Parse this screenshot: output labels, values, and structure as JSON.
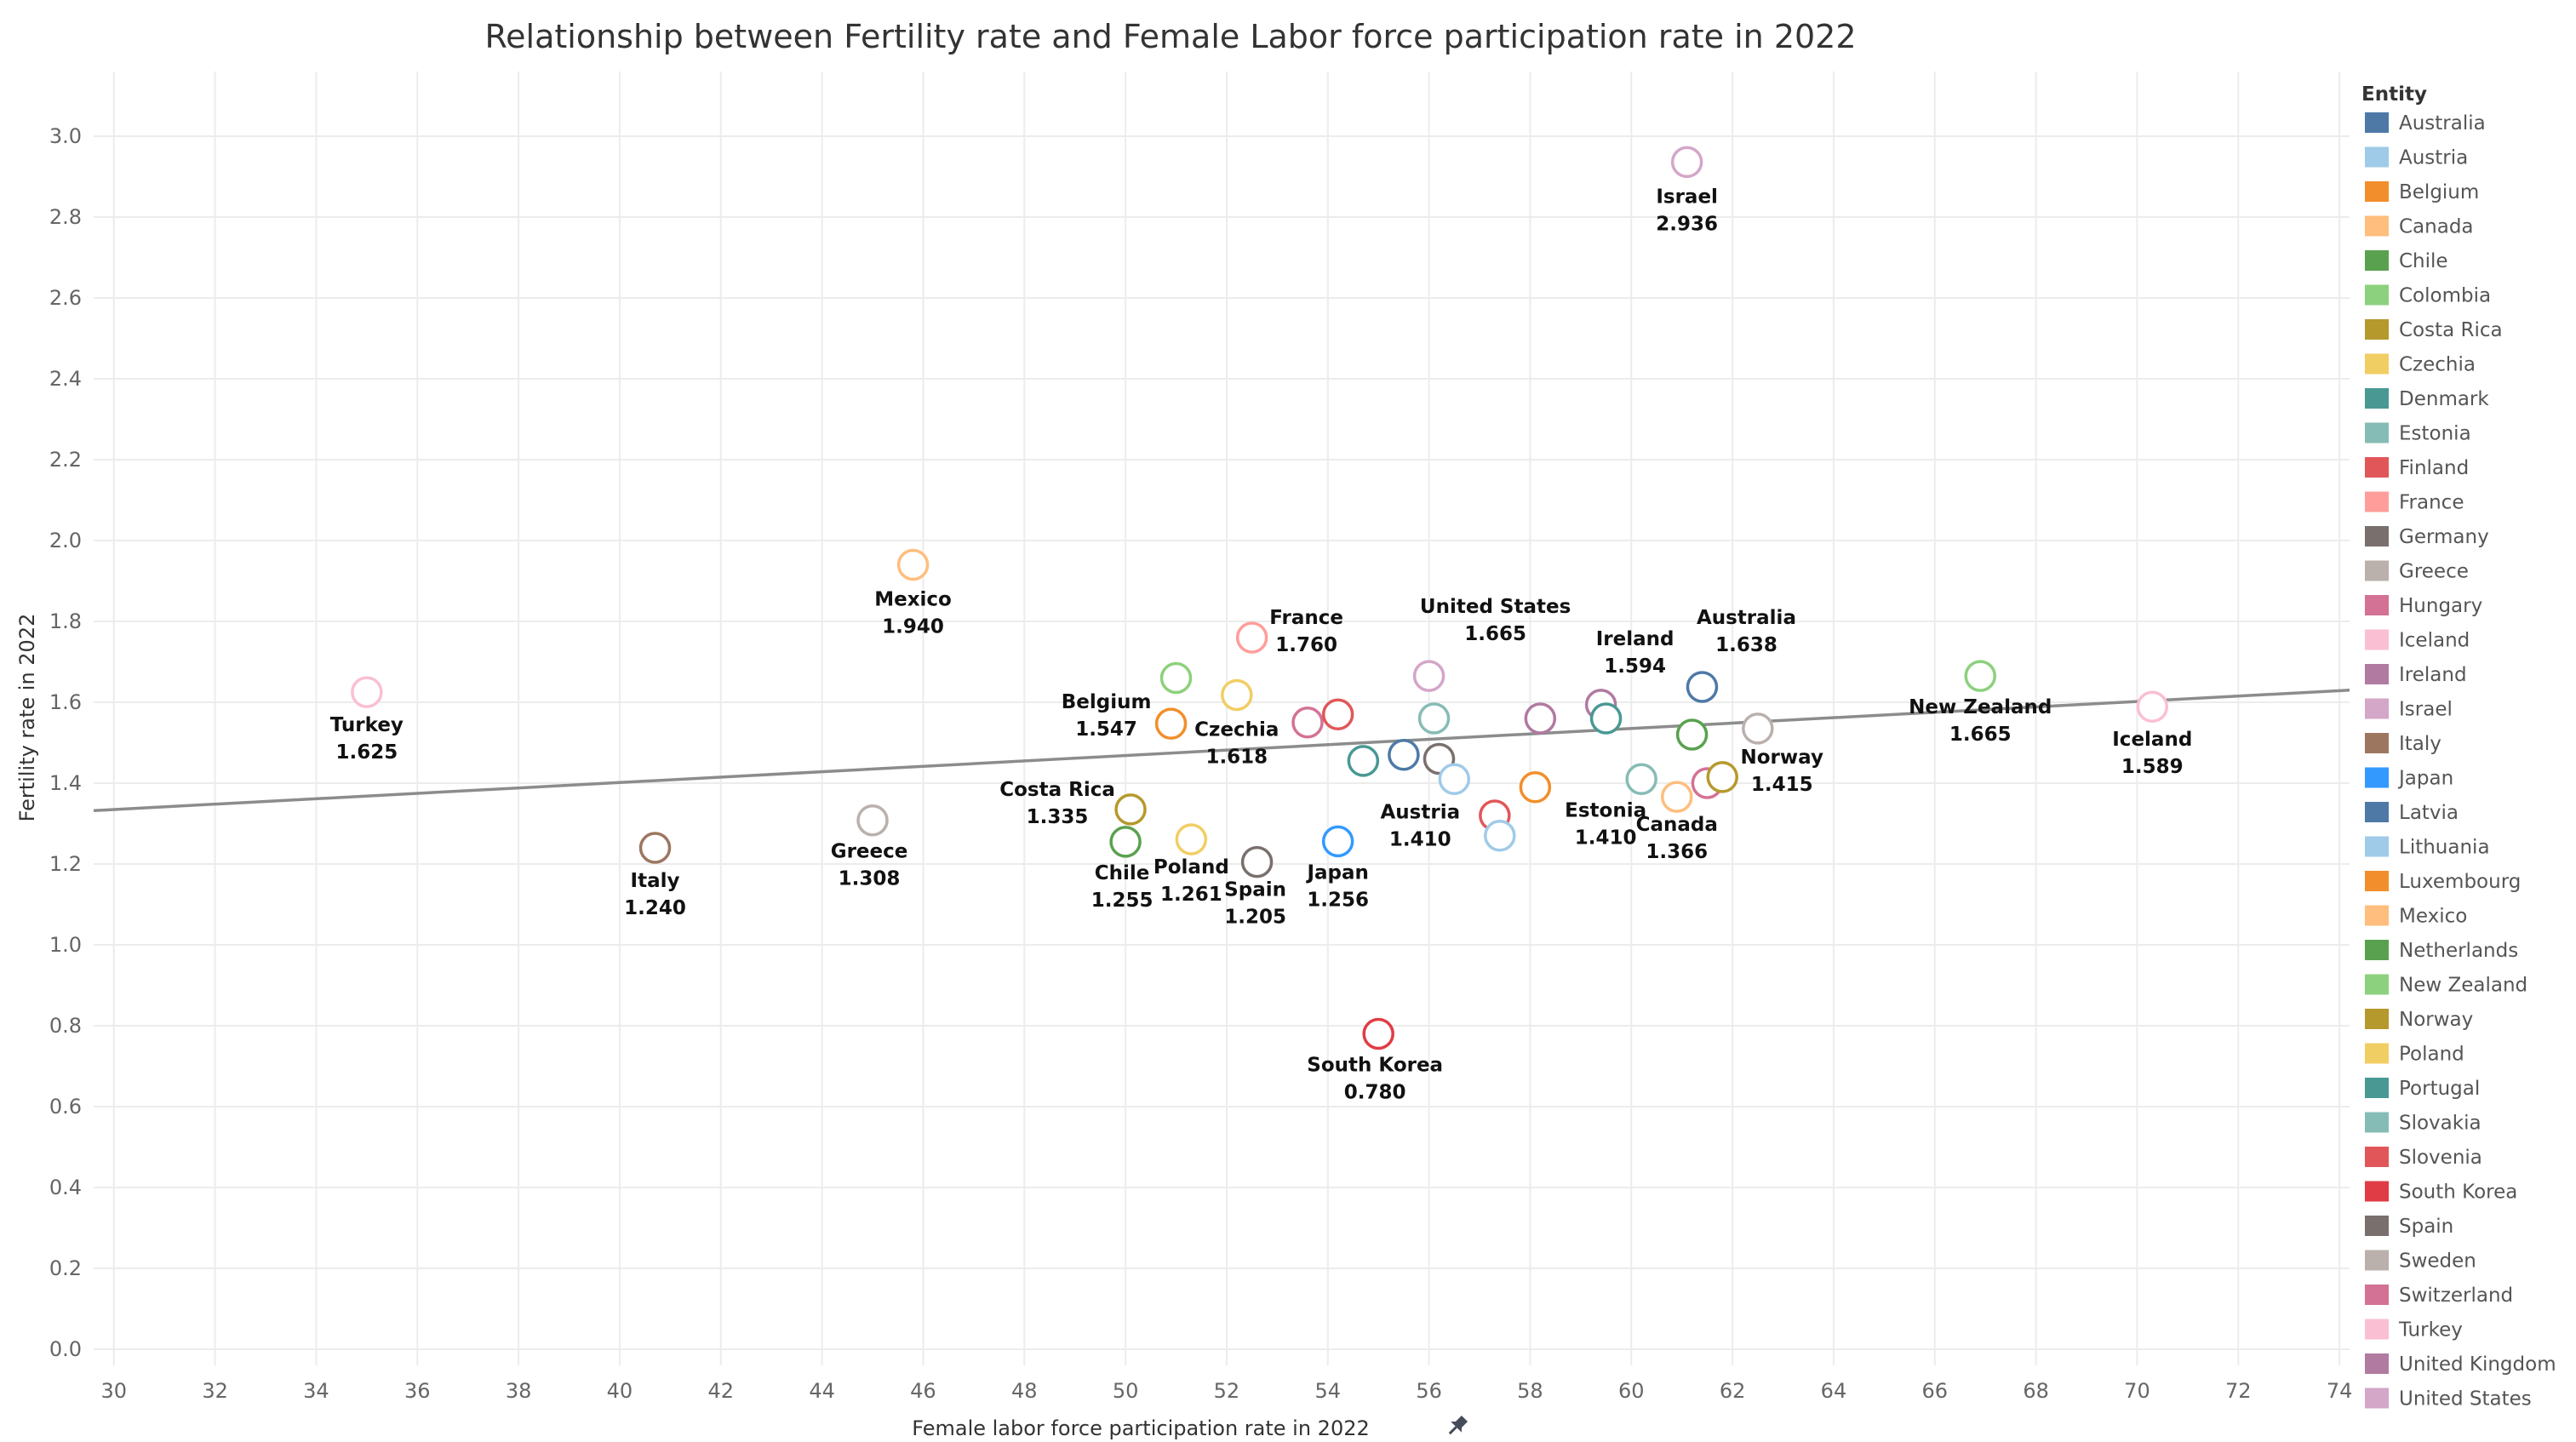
{
  "chart_data": {
    "type": "scatter",
    "title": "Relationship between Fertility rate and Female Labor force participation rate in 2022",
    "xlabel": "Female labor force participation rate in 2022",
    "ylabel": "Fertility rate in 2022",
    "xlim": [
      29.6,
      74.2
    ],
    "ylim": [
      -0.04,
      3.16
    ],
    "xticks": [
      30,
      32,
      34,
      36,
      38,
      40,
      42,
      44,
      46,
      48,
      50,
      52,
      54,
      56,
      58,
      60,
      62,
      64,
      66,
      68,
      70,
      72,
      74
    ],
    "yticks": [
      "0.0",
      "0.2",
      "0.4",
      "0.6",
      "0.8",
      "1.0",
      "1.2",
      "1.4",
      "1.6",
      "1.8",
      "2.0",
      "2.2",
      "2.4",
      "2.6",
      "2.8",
      "3.0"
    ],
    "grid": true,
    "legend_title": "Entity",
    "legend_position": "right",
    "trend_line": {
      "x": [
        29.6,
        74.2
      ],
      "y": [
        1.332,
        1.63
      ],
      "color": "#8c8c8c"
    },
    "legend": [
      {
        "name": "Australia",
        "color": "#4e79a7"
      },
      {
        "name": "Austria",
        "color": "#a0cbe8"
      },
      {
        "name": "Belgium",
        "color": "#f28e2b"
      },
      {
        "name": "Canada",
        "color": "#ffbe7d"
      },
      {
        "name": "Chile",
        "color": "#59a14f"
      },
      {
        "name": "Colombia",
        "color": "#8cd17d"
      },
      {
        "name": "Costa Rica",
        "color": "#b6992d"
      },
      {
        "name": "Czechia",
        "color": "#f1ce63"
      },
      {
        "name": "Denmark",
        "color": "#499894"
      },
      {
        "name": "Estonia",
        "color": "#86bcb6"
      },
      {
        "name": "Finland",
        "color": "#e15759"
      },
      {
        "name": "France",
        "color": "#ff9d9a"
      },
      {
        "name": "Germany",
        "color": "#79706e"
      },
      {
        "name": "Greece",
        "color": "#bab0ac"
      },
      {
        "name": "Hungary",
        "color": "#d37295"
      },
      {
        "name": "Iceland",
        "color": "#fabfd2"
      },
      {
        "name": "Ireland",
        "color": "#b07aa1"
      },
      {
        "name": "Israel",
        "color": "#d4a6c8"
      },
      {
        "name": "Italy",
        "color": "#9d7660"
      },
      {
        "name": "Japan",
        "color": "#3399ff"
      },
      {
        "name": "Latvia",
        "color": "#4e79a7"
      },
      {
        "name": "Lithuania",
        "color": "#a0cbe8"
      },
      {
        "name": "Luxembourg",
        "color": "#f28e2b"
      },
      {
        "name": "Mexico",
        "color": "#ffbe7d"
      },
      {
        "name": "Netherlands",
        "color": "#59a14f"
      },
      {
        "name": "New Zealand",
        "color": "#8cd17d"
      },
      {
        "name": "Norway",
        "color": "#b6992d"
      },
      {
        "name": "Poland",
        "color": "#f1ce63"
      },
      {
        "name": "Portugal",
        "color": "#499894"
      },
      {
        "name": "Slovakia",
        "color": "#86bcb6"
      },
      {
        "name": "Slovenia",
        "color": "#e15759"
      },
      {
        "name": "South Korea",
        "color": "#e03c45"
      },
      {
        "name": "Spain",
        "color": "#79706e"
      },
      {
        "name": "Sweden",
        "color": "#bab0ac"
      },
      {
        "name": "Switzerland",
        "color": "#d37295"
      },
      {
        "name": "Turkey",
        "color": "#fabfd2"
      },
      {
        "name": "United Kingdom",
        "color": "#b07aa1"
      },
      {
        "name": "United States",
        "color": "#d4a6c8"
      }
    ],
    "points": [
      {
        "name": "Israel",
        "x": 61.1,
        "y": 2.936,
        "color": "#d4a6c8",
        "label": [
          "Israel",
          "2.936"
        ],
        "lx": 0,
        "ly": 48
      },
      {
        "name": "Mexico",
        "x": 45.8,
        "y": 1.94,
        "color": "#ffbe7d",
        "label": [
          "Mexico",
          "1.940"
        ],
        "lx": 0,
        "ly": 48
      },
      {
        "name": "France",
        "x": 52.5,
        "y": 1.76,
        "color": "#ff9d9a",
        "label": [
          "France",
          "1.760"
        ],
        "lx": 64,
        "ly": -16
      },
      {
        "name": "United States",
        "x": 56.0,
        "y": 1.665,
        "color": "#d4a6c8",
        "label": [
          "United States",
          "1.665"
        ],
        "lx": 78,
        "ly": -74
      },
      {
        "name": "Ireland",
        "x": 59.4,
        "y": 1.594,
        "color": "#b07aa1",
        "label": [
          "Ireland",
          "1.594"
        ],
        "lx": 40,
        "ly": -70
      },
      {
        "name": "Australia",
        "x": 61.4,
        "y": 1.638,
        "color": "#4e79a7",
        "label": [
          "Australia",
          "1.638"
        ],
        "lx": 52,
        "ly": -74
      },
      {
        "name": "New Zealand",
        "x": 66.9,
        "y": 1.665,
        "color": "#8cd17d",
        "label": [
          "New Zealand",
          "1.665"
        ],
        "lx": 0,
        "ly": 44
      },
      {
        "name": "Iceland",
        "x": 70.3,
        "y": 1.589,
        "color": "#fabfd2",
        "label": [
          "Iceland",
          "1.589"
        ],
        "lx": 0,
        "ly": 46
      },
      {
        "name": "Turkey",
        "x": 35.0,
        "y": 1.625,
        "color": "#fabfd2",
        "label": [
          "Turkey",
          "1.625"
        ],
        "lx": 0,
        "ly": 46
      },
      {
        "name": "Belgium",
        "x": 50.9,
        "y": 1.547,
        "color": "#f28e2b",
        "label": [
          "Belgium",
          "1.547"
        ],
        "lx": -76,
        "ly": -18
      },
      {
        "name": "Colombia",
        "x": 51.0,
        "y": 1.66,
        "color": "#8cd17d"
      },
      {
        "name": "Czechia",
        "x": 52.2,
        "y": 1.618,
        "color": "#f1ce63",
        "label": [
          "Czechia",
          "1.618"
        ],
        "lx": 0,
        "ly": 48
      },
      {
        "name": "Hungary",
        "x": 53.6,
        "y": 1.55,
        "color": "#d37295"
      },
      {
        "name": "Finland",
        "x": 54.2,
        "y": 1.57,
        "color": "#e15759"
      },
      {
        "name": "Slovakia",
        "x": 56.1,
        "y": 1.56,
        "color": "#86bcb6"
      },
      {
        "name": "United Kingdom",
        "x": 58.2,
        "y": 1.56,
        "color": "#b07aa1"
      },
      {
        "name": "Portugal",
        "x": 59.5,
        "y": 1.56,
        "color": "#499894"
      },
      {
        "name": "Netherlands",
        "x": 61.2,
        "y": 1.52,
        "color": "#59a14f"
      },
      {
        "name": "Sweden",
        "x": 62.5,
        "y": 1.535,
        "color": "#bab0ac"
      },
      {
        "name": "Denmark",
        "x": 54.7,
        "y": 1.455,
        "color": "#499894"
      },
      {
        "name": "Latvia",
        "x": 55.5,
        "y": 1.47,
        "color": "#4e79a7"
      },
      {
        "name": "Germany",
        "x": 56.2,
        "y": 1.46,
        "color": "#79706e"
      },
      {
        "name": "Austria",
        "x": 56.5,
        "y": 1.41,
        "color": "#a0cbe8",
        "label": [
          "Austria",
          "1.410"
        ],
        "lx": -40,
        "ly": 46
      },
      {
        "name": "Luxembourg",
        "x": 58.1,
        "y": 1.39,
        "color": "#f28e2b"
      },
      {
        "name": "Slovenia",
        "x": 57.3,
        "y": 1.32,
        "color": "#e15759"
      },
      {
        "name": "Lithuania",
        "x": 57.4,
        "y": 1.27,
        "color": "#a0cbe8"
      },
      {
        "name": "Estonia",
        "x": 60.2,
        "y": 1.41,
        "color": "#86bcb6",
        "label": [
          "Estonia",
          "1.410"
        ],
        "lx": -42,
        "ly": 44
      },
      {
        "name": "Canada",
        "x": 60.9,
        "y": 1.366,
        "color": "#ffbe7d",
        "label": [
          "Canada",
          "1.366"
        ],
        "lx": 0,
        "ly": 40
      },
      {
        "name": "Switzerland",
        "x": 61.5,
        "y": 1.4,
        "color": "#d37295"
      },
      {
        "name": "Norway",
        "x": 61.8,
        "y": 1.415,
        "color": "#b6992d",
        "label": [
          "Norway",
          "1.415"
        ],
        "lx": 70,
        "ly": -16
      },
      {
        "name": "Costa Rica",
        "x": 50.1,
        "y": 1.335,
        "color": "#b6992d",
        "label": [
          "Costa Rica",
          "1.335"
        ],
        "lx": -86,
        "ly": -16
      },
      {
        "name": "Chile",
        "x": 50.0,
        "y": 1.255,
        "color": "#59a14f",
        "label": [
          "Chile",
          "1.255"
        ],
        "lx": -4,
        "ly": 44
      },
      {
        "name": "Poland",
        "x": 51.3,
        "y": 1.261,
        "color": "#f1ce63",
        "label": [
          "Poland",
          "1.261"
        ],
        "lx": 0,
        "ly": 40
      },
      {
        "name": "Spain",
        "x": 52.6,
        "y": 1.205,
        "color": "#79706e",
        "label": [
          "Spain",
          "1.205"
        ],
        "lx": -2,
        "ly": 40
      },
      {
        "name": "Japan",
        "x": 54.2,
        "y": 1.256,
        "color": "#3399ff",
        "label": [
          "Japan",
          "1.256"
        ],
        "lx": 0,
        "ly": 44
      },
      {
        "name": "Greece",
        "x": 45.0,
        "y": 1.308,
        "color": "#bab0ac",
        "label": [
          "Greece",
          "1.308"
        ],
        "lx": -4,
        "ly": 44
      },
      {
        "name": "Italy",
        "x": 40.7,
        "y": 1.24,
        "color": "#9d7660",
        "label": [
          "Italy",
          "1.240"
        ],
        "lx": 0,
        "ly": 46
      },
      {
        "name": "South Korea",
        "x": 55.0,
        "y": 0.78,
        "color": "#e03c45",
        "label": [
          "South Korea",
          "0.780"
        ],
        "lx": -4,
        "ly": 44
      }
    ]
  }
}
